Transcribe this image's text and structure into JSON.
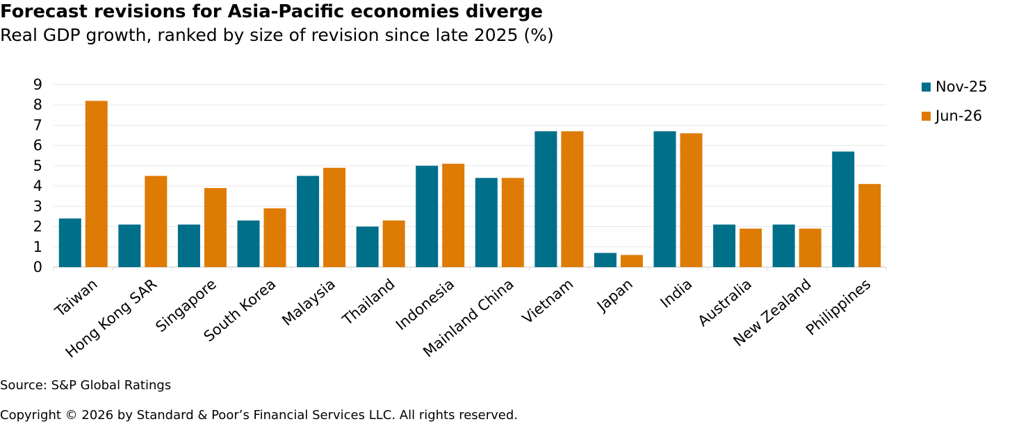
{
  "header": {
    "title": "Forecast revisions for Asia-Pacific economies diverge",
    "subtitle": "Real GDP growth, ranked by size of revision since late 2025 (%)"
  },
  "footer": {
    "source": "Source: S&P Global Ratings",
    "copyright": "Copyright © 2026 by Standard & Poor’s Financial Services LLC. All rights reserved."
  },
  "colors": {
    "nov25": "#006f8a",
    "jun26": "#de7b05",
    "grid": "#e6e6e6",
    "axis": "#d9d9d9"
  },
  "chart_data": {
    "type": "bar",
    "title": "Forecast revisions for Asia-Pacific economies diverge",
    "subtitle": "Real GDP growth, ranked by size of revision since late 2025 (%)",
    "categories": [
      "Taiwan",
      "Hong Kong SAR",
      "Singapore",
      "South Korea",
      "Malaysia",
      "Thailand",
      "Indonesia",
      "Mainland China",
      "Vietnam",
      "Japan",
      "India",
      "Australia",
      "New Zealand",
      "Philippines"
    ],
    "series": [
      {
        "name": "Nov-25",
        "values": [
          2.4,
          2.1,
          2.1,
          2.3,
          4.5,
          2.0,
          5.0,
          4.4,
          6.7,
          0.7,
          6.7,
          2.1,
          2.1,
          5.7
        ]
      },
      {
        "name": "Jun-26",
        "values": [
          8.2,
          4.5,
          3.9,
          2.9,
          4.9,
          2.3,
          5.1,
          4.4,
          6.7,
          0.6,
          6.6,
          1.9,
          1.9,
          4.1
        ]
      }
    ],
    "ylim": [
      0,
      9
    ],
    "yticks": [
      "0",
      "1",
      "2",
      "3",
      "4",
      "5",
      "6",
      "7",
      "8",
      "9"
    ],
    "xlabel": "",
    "ylabel": "",
    "grid": true,
    "legend": "right"
  }
}
